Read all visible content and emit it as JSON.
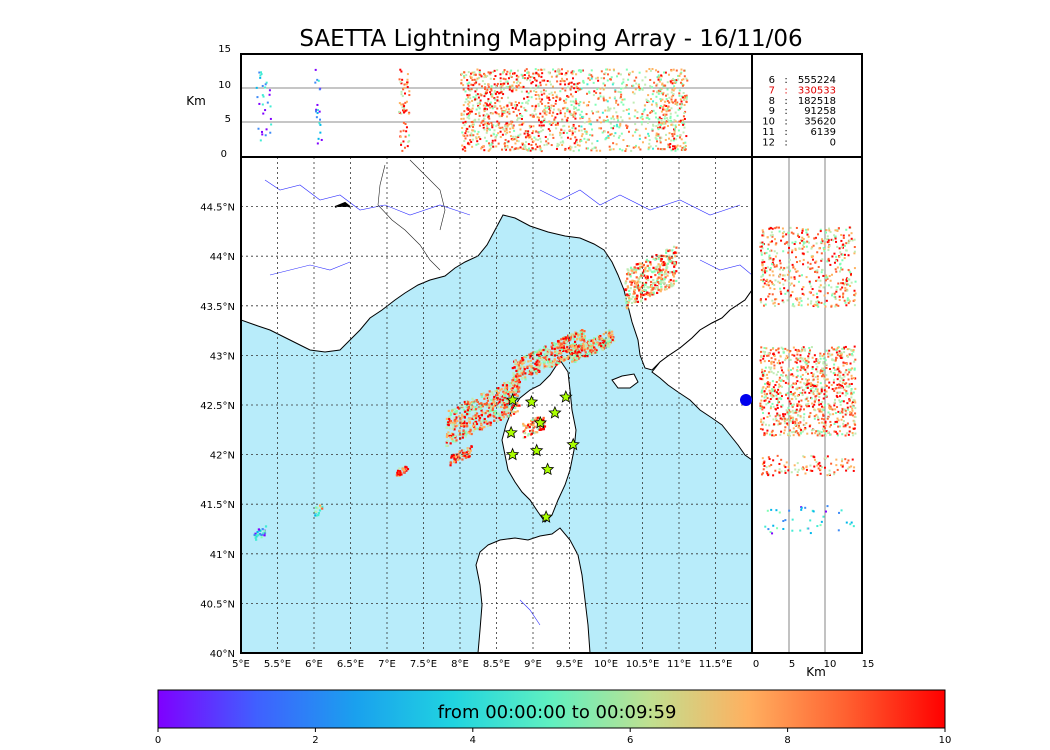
{
  "chart_data": {
    "type": "scatter",
    "title": "SAETTA Lightning Mapping Array - 16/11/06",
    "map": {
      "lon_range": [
        5,
        12
      ],
      "lat_range": [
        40,
        45
      ],
      "lon_ticks": [
        "5°E",
        "5.5°E",
        "6°E",
        "6.5°E",
        "7°E",
        "7.5°E",
        "8°E",
        "8.5°E",
        "9°E",
        "9.5°E",
        "10°E",
        "10.5°E",
        "11°E",
        "11.5°E"
      ],
      "lat_ticks": [
        "40°N",
        "40.5°N",
        "41°N",
        "41.5°N",
        "42°N",
        "42.5°N",
        "43°N",
        "43.5°N",
        "44°N",
        "44.5°N"
      ],
      "sea_color": "#b8ecfa"
    },
    "altitude_panel": {
      "ylabel": "Km",
      "y_ticks": [
        "0",
        "5",
        "10",
        "15"
      ],
      "ylim": [
        0,
        15
      ]
    },
    "side_panel": {
      "xlabel": "Km",
      "x_ticks": [
        "0",
        "5",
        "10",
        "15"
      ],
      "xlim": [
        0,
        15
      ]
    },
    "station_counts": [
      {
        "n": "6",
        "sep": ":",
        "count": "555224",
        "highlight": false
      },
      {
        "n": "7",
        "sep": ":",
        "count": "330533",
        "highlight": true
      },
      {
        "n": "8",
        "sep": ":",
        "count": "182518",
        "highlight": false
      },
      {
        "n": "9",
        "sep": ":",
        "count": "91258",
        "highlight": false
      },
      {
        "n": "10",
        "sep": ":",
        "count": "35620",
        "highlight": false
      },
      {
        "n": "11",
        "sep": ":",
        "count": "6139",
        "highlight": false
      },
      {
        "n": "12",
        "sep": ":",
        "count": "0",
        "highlight": false
      }
    ],
    "stations": [
      {
        "lon": 8.72,
        "lat": 42.55
      },
      {
        "lon": 8.98,
        "lat": 42.53
      },
      {
        "lon": 9.45,
        "lat": 42.58
      },
      {
        "lon": 9.3,
        "lat": 42.42
      },
      {
        "lon": 9.1,
        "lat": 42.32
      },
      {
        "lon": 8.7,
        "lat": 42.22
      },
      {
        "lon": 9.55,
        "lat": 42.1
      },
      {
        "lon": 9.05,
        "lat": 42.04
      },
      {
        "lon": 8.72,
        "lat": 42.0
      },
      {
        "lon": 9.2,
        "lat": 41.85
      },
      {
        "lon": 9.18,
        "lat": 41.37
      }
    ],
    "colorbar": {
      "label": "from 00:00:00 to 00:09:59",
      "ticks": [
        "0",
        "2",
        "4",
        "6",
        "8",
        "10"
      ],
      "range": [
        0,
        10
      ],
      "colors": [
        "#7f00ff",
        "#3d8bf7",
        "#00b7eb",
        "#40ecd4",
        "#80ffb4",
        "#c0ecb4",
        "#ffb360",
        "#ff6030",
        "#ff0000"
      ]
    }
  }
}
